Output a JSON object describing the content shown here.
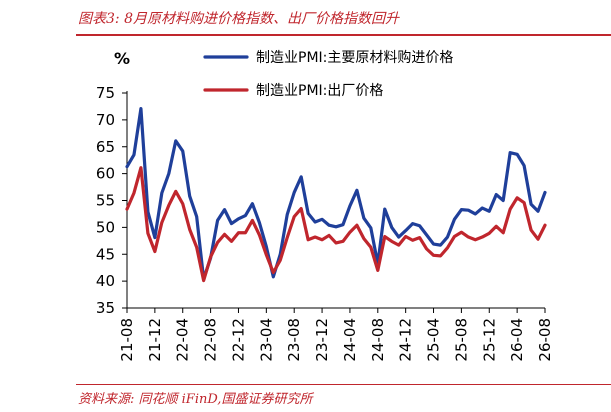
{
  "figure": {
    "title": "图表3:  8月原材料购进价格指数、出厂价格指数回升",
    "source": "资料来源:  同花顺 iFinD,国盛证券研究所",
    "accent_color": "#c0262d"
  },
  "chart_data": {
    "type": "line",
    "title": "",
    "xlabel": "",
    "ylabel": "%",
    "ylim": [
      35,
      75
    ],
    "yticks": [
      35,
      40,
      45,
      50,
      55,
      60,
      65,
      70,
      75
    ],
    "grid": false,
    "legend_placement": "top-center",
    "x": [
      "21-08",
      "21-09",
      "21-10",
      "21-11",
      "21-12",
      "22-01",
      "22-02",
      "22-03",
      "22-04",
      "22-05",
      "22-06",
      "22-07",
      "22-08",
      "22-09",
      "22-10",
      "22-11",
      "22-12",
      "23-01",
      "23-02",
      "23-03",
      "23-04",
      "23-05",
      "23-06",
      "23-07",
      "23-08",
      "23-09",
      "23-10",
      "23-11",
      "23-12",
      "24-01",
      "24-02",
      "24-03",
      "24-04",
      "24-05",
      "24-06",
      "24-07",
      "24-08",
      "24-09",
      "24-10",
      "24-11",
      "24-12",
      "25-01",
      "25-02",
      "25-03",
      "25-04",
      "25-05",
      "25-06",
      "25-07",
      "25-08",
      "25-09",
      "25-10",
      "25-11",
      "25-12",
      "26-01",
      "26-02",
      "26-03",
      "26-04",
      "26-05",
      "26-06",
      "26-07",
      "26-08"
    ],
    "xtick_labels": [
      "21-08",
      "21-12",
      "22-04",
      "22-08",
      "22-12",
      "23-04",
      "23-08",
      "23-12",
      "24-04",
      "24-08",
      "24-12",
      "25-04",
      "25-08",
      "25-12",
      "26-04",
      "26-08"
    ],
    "series": [
      {
        "name": "制造业PMI:主要原材料购进价格",
        "color": "#1f3f9a",
        "values": [
          61.3,
          63.5,
          72.1,
          52.9,
          48.1,
          56.4,
          60.0,
          66.1,
          64.2,
          55.8,
          52.0,
          40.4,
          44.3,
          51.3,
          53.3,
          50.7,
          51.6,
          52.2,
          54.4,
          50.9,
          46.4,
          40.8,
          45.0,
          52.4,
          56.5,
          59.4,
          52.6,
          51.0,
          51.5,
          50.4,
          50.1,
          50.5,
          54.0,
          56.9,
          51.7,
          49.9,
          43.2,
          53.4,
          50.0,
          48.2,
          49.4,
          50.7,
          50.3,
          48.6,
          46.9,
          46.7,
          48.2,
          51.5,
          53.3,
          53.2,
          52.5,
          53.6,
          53.0,
          56.1,
          55.0,
          63.9,
          63.6,
          61.5,
          54.3,
          53.0,
          56.5
        ]
      },
      {
        "name": "制造业PMI:出厂价格",
        "color": "#c0262d",
        "values": [
          53.4,
          56.4,
          61.1,
          48.9,
          45.5,
          50.9,
          54.1,
          56.7,
          54.4,
          49.6,
          46.3,
          40.1,
          44.5,
          47.2,
          48.7,
          47.4,
          49.0,
          49.0,
          51.3,
          48.6,
          44.9,
          41.6,
          43.9,
          48.1,
          52.0,
          53.5,
          47.7,
          48.2,
          47.7,
          48.5,
          47.1,
          47.4,
          49.1,
          50.4,
          47.9,
          46.3,
          42.0,
          48.3,
          47.4,
          46.7,
          48.3,
          47.6,
          48.1,
          46.0,
          44.8,
          44.7,
          46.2,
          48.3,
          49.1,
          48.2,
          47.7,
          48.2,
          48.9,
          50.2,
          49.0,
          53.4,
          55.5,
          54.6,
          49.5,
          47.8,
          50.4
        ]
      }
    ]
  }
}
